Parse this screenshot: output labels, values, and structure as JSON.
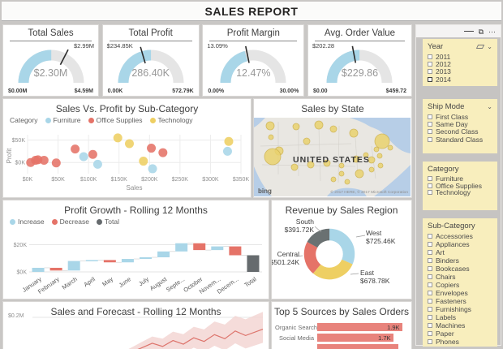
{
  "page": {
    "title": "SALES REPORT"
  },
  "colors": {
    "blue": "#a9d6e8",
    "red": "#e57368",
    "yellow": "#eecf63",
    "slice_gray": "#6a7172",
    "total_gray": "#666b6e",
    "track": "#e5e5e5",
    "bar_salmon": "#e8837c",
    "slicer_bg": "#f8eebd",
    "page_bg": "#c9c7c5",
    "map_water": "#b7cee7",
    "map_land": "#e9e7e2"
  },
  "kpis": [
    {
      "title": "Total Sales",
      "value": "$2.30M",
      "min": "$0.00M",
      "max": "$4.59M",
      "target_label": "$2.99M",
      "fill_pct": 0.501,
      "target_pct": 0.651,
      "target_side": "right"
    },
    {
      "title": "Total Profit",
      "value": "286.40K",
      "min": "0.00K",
      "max": "572.79K",
      "target_label": "$234.85K",
      "fill_pct": 0.5,
      "target_pct": 0.41,
      "target_side": "left"
    },
    {
      "title": "Profit Margin",
      "value": "12.47%",
      "min": "0.00%",
      "max": "30.00%",
      "target_label": "13.09%",
      "fill_pct": 0.416,
      "target_pct": 0.436,
      "target_side": "left"
    },
    {
      "title": "Avg. Order Value",
      "value": "$229.86",
      "min": "$0.00",
      "max": "$459.72",
      "target_label": "$202.28",
      "fill_pct": 0.5,
      "target_pct": 0.44,
      "target_side": "left"
    }
  ],
  "charts": {
    "scatter": {
      "type": "scatter",
      "title": "Sales Vs. Profit by Sub-Category",
      "legend_label": "Category",
      "xlabel": "Sales",
      "ylabel": "Profit",
      "x_ticks": [
        "$0K",
        "$50K",
        "$100K",
        "$150K",
        "$200K",
        "$250K",
        "$300K",
        "$350K"
      ],
      "y_ticks": [
        "$0K",
        "$50K"
      ],
      "xlim": [
        0,
        350
      ],
      "ylim": [
        -25,
        62
      ],
      "series": [
        {
          "name": "Furniture",
          "color": "#a9d6e8",
          "points": [
            [
              92,
              13
            ],
            [
              115,
              -4
            ],
            [
              205,
              -14
            ],
            [
              328,
              25
            ]
          ]
        },
        {
          "name": "Office Supplies",
          "color": "#e57368",
          "points": [
            [
              5,
              0
            ],
            [
              13,
              5
            ],
            [
              17,
              6
            ],
            [
              27,
              5
            ],
            [
              47,
              -1
            ],
            [
              78,
              30
            ],
            [
              107,
              18
            ],
            [
              203,
              32
            ],
            [
              222,
              22
            ]
          ]
        },
        {
          "name": "Technology",
          "color": "#eecf63",
          "points": [
            [
              148,
              55
            ],
            [
              167,
              42
            ],
            [
              190,
              3
            ],
            [
              330,
              47
            ]
          ]
        }
      ]
    },
    "map": {
      "type": "map-bubble",
      "title": "Sales by State",
      "country_label": "UNITED STATES",
      "provider": "bing",
      "attribution": "© 2017 HERE, © 2017 Microsoft Corporation",
      "bubbles": [
        [
          20,
          10,
          5
        ],
        [
          52,
          11,
          4
        ],
        [
          80,
          9,
          5
        ],
        [
          98,
          14,
          4
        ],
        [
          123,
          19,
          5
        ],
        [
          158,
          29,
          9
        ],
        [
          65,
          29,
          4
        ],
        [
          21,
          24,
          3
        ],
        [
          31,
          41,
          5
        ],
        [
          23,
          48,
          10
        ],
        [
          50,
          61,
          4
        ],
        [
          70,
          58,
          4
        ],
        [
          90,
          56,
          4
        ],
        [
          108,
          59,
          3
        ],
        [
          126,
          51,
          4
        ],
        [
          138,
          46,
          3
        ],
        [
          145,
          52,
          4
        ],
        [
          155,
          47,
          3
        ],
        [
          108,
          69,
          3
        ],
        [
          130,
          69,
          5
        ],
        [
          145,
          64,
          3
        ],
        [
          115,
          79,
          3
        ],
        [
          98,
          76,
          3
        ],
        [
          151,
          39,
          3
        ],
        [
          168,
          37,
          3
        ],
        [
          156,
          59,
          3
        ]
      ]
    },
    "waterfall": {
      "type": "waterfall",
      "title": "Profit Growth - Rolling 12 Months",
      "legend": [
        {
          "label": "Increase",
          "color": "#a9d6e8"
        },
        {
          "label": "Decrease",
          "color": "#e57368"
        },
        {
          "label": "Total",
          "color": "#666b6e"
        }
      ],
      "y_ticks": [
        "$0K",
        "$20K"
      ],
      "ylim": [
        0,
        25
      ],
      "bars": [
        {
          "label": "January",
          "start": 0,
          "end": 3,
          "kind": "increase"
        },
        {
          "label": "February",
          "start": 3,
          "end": 1,
          "kind": "decrease"
        },
        {
          "label": "March",
          "start": 1,
          "end": 8,
          "kind": "increase"
        },
        {
          "label": "April",
          "start": 8,
          "end": 8.7,
          "kind": "increase"
        },
        {
          "label": "May",
          "start": 8.7,
          "end": 7,
          "kind": "decrease"
        },
        {
          "label": "June",
          "start": 7,
          "end": 9.5,
          "kind": "increase"
        },
        {
          "label": "July",
          "start": 9.5,
          "end": 10.7,
          "kind": "increase"
        },
        {
          "label": "August",
          "start": 10.7,
          "end": 15,
          "kind": "increase"
        },
        {
          "label": "Septe...",
          "start": 15,
          "end": 21,
          "kind": "increase"
        },
        {
          "label": "October",
          "start": 21,
          "end": 16,
          "kind": "decrease"
        },
        {
          "label": "Novem...",
          "start": 16,
          "end": 18.7,
          "kind": "increase"
        },
        {
          "label": "Decem...",
          "start": 18.7,
          "end": 12.2,
          "kind": "decrease"
        },
        {
          "label": "Total",
          "start": 0,
          "end": 12.2,
          "kind": "total"
        }
      ]
    },
    "donut": {
      "type": "donut",
      "title": "Revenue by Sales Region",
      "slices": [
        {
          "label": "West",
          "value": 725.46,
          "display": "$725.46K",
          "color": "#a9d6e8"
        },
        {
          "label": "East",
          "value": 678.78,
          "display": "$678.78K",
          "color": "#eecf63"
        },
        {
          "label": "Central",
          "value": 501.24,
          "display": "$501.24K",
          "color": "#e57368"
        },
        {
          "label": "South",
          "value": 391.72,
          "display": "$391.72K",
          "color": "#6a7172"
        }
      ]
    },
    "forecast": {
      "type": "area-line",
      "title": "Sales and Forecast - Rolling 12 Months",
      "y_tick": "$0.2M",
      "line_color": "#dd746c",
      "band_color": "#f2d3d1",
      "line": [
        [
          0.4,
          0.118
        ],
        [
          0.44,
          0.126
        ],
        [
          0.47,
          0.132
        ],
        [
          0.52,
          0.143
        ],
        [
          0.565,
          0.136
        ],
        [
          0.61,
          0.149
        ],
        [
          0.655,
          0.141
        ],
        [
          0.7,
          0.155
        ],
        [
          0.745,
          0.147
        ],
        [
          0.79,
          0.162
        ],
        [
          0.835,
          0.153
        ],
        [
          0.88,
          0.17
        ],
        [
          0.925,
          0.16
        ],
        [
          1.0,
          0.174
        ]
      ]
    },
    "sources": {
      "type": "bar-h",
      "title": "Top 5 Sources by Sales Orders",
      "max": 2.0,
      "bars": [
        {
          "label": "Organic Search",
          "value": 1.9,
          "display": "1.9K"
        },
        {
          "label": "Social Media",
          "value": 1.7,
          "display": "1.7K"
        }
      ],
      "partial_third_bar": true
    }
  },
  "sidebar": {
    "toolbar": {
      "icons": [
        "focus-mode",
        "more-options"
      ]
    },
    "slicers": [
      {
        "title": "Year",
        "header_icons": [
          "eraser",
          "chevron-down"
        ],
        "items": [
          {
            "label": "2011"
          },
          {
            "label": "2012"
          },
          {
            "label": "2013"
          },
          {
            "label": "2014",
            "emphasized": true
          }
        ]
      },
      {
        "title": "Ship Mode",
        "header_icons": [
          "chevron-down"
        ],
        "items": [
          {
            "label": "First Class"
          },
          {
            "label": "Same Day"
          },
          {
            "label": "Second Class"
          },
          {
            "label": "Standard Class"
          }
        ]
      },
      {
        "title": "Category",
        "header_icons": [],
        "items": [
          {
            "label": "Furniture"
          },
          {
            "label": "Office Supplies"
          },
          {
            "label": "Technology"
          }
        ]
      },
      {
        "title": "Sub-Category",
        "header_icons": [],
        "items": [
          {
            "label": "Accessories"
          },
          {
            "label": "Appliances"
          },
          {
            "label": "Art"
          },
          {
            "label": "Binders"
          },
          {
            "label": "Bookcases"
          },
          {
            "label": "Chairs"
          },
          {
            "label": "Copiers"
          },
          {
            "label": "Envelopes"
          },
          {
            "label": "Fasteners"
          },
          {
            "label": "Furnishings"
          },
          {
            "label": "Labels"
          },
          {
            "label": "Machines"
          },
          {
            "label": "Paper"
          },
          {
            "label": "Phones"
          }
        ]
      }
    ]
  }
}
